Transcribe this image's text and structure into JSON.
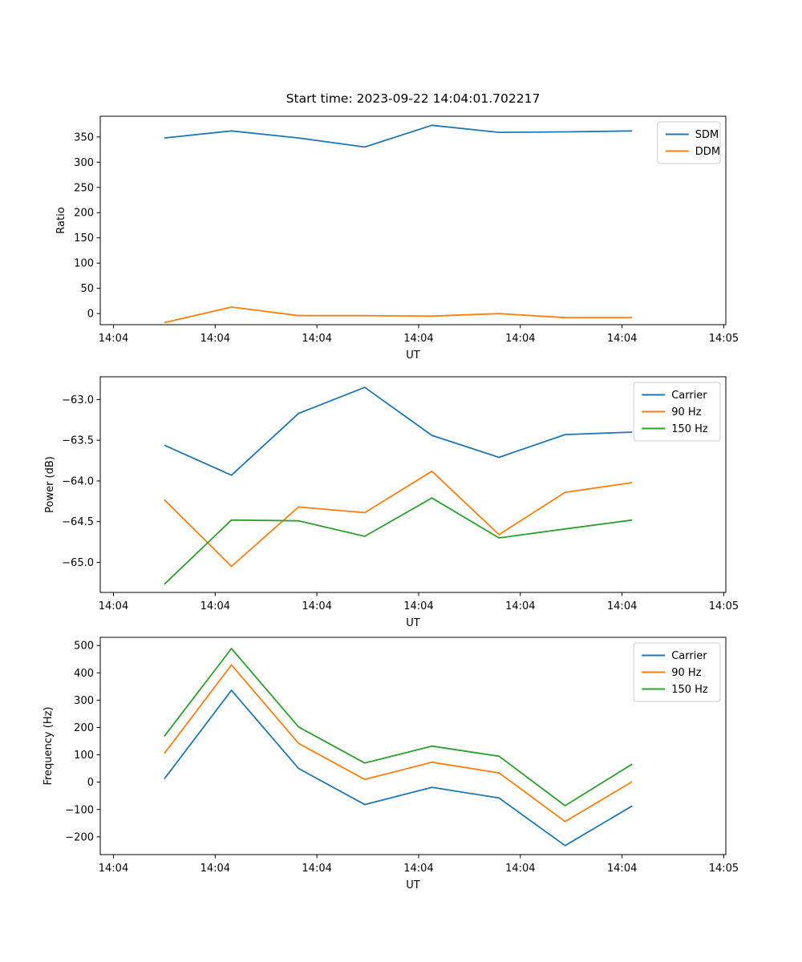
{
  "figure": {
    "background": "#ffffff",
    "title": "Start time: 2023-09-22 14:04:01.702217"
  },
  "palette": {
    "blue": "#1f77b4",
    "orange": "#ff7f0e",
    "green": "#2ca02c",
    "axis": "#000000",
    "legend_border": "#cccccc"
  },
  "chart_data": [
    {
      "type": "line",
      "title": "Start time: 2023-09-22 14:04:01.702217",
      "xlabel": "UT",
      "ylabel": "Ratio",
      "grid": false,
      "legend_position": "upper right",
      "x_tick_labels": [
        "14:04",
        "14:04",
        "14:04",
        "14:04",
        "14:04",
        "14:04",
        "14:05"
      ],
      "x_tick_positions": [
        0,
        10,
        20,
        30,
        40,
        50,
        60
      ],
      "xlim": [
        -1.3,
        60.2
      ],
      "ylim": [
        -22,
        391
      ],
      "y_ticks": [
        350,
        300,
        250,
        200,
        150,
        100,
        50,
        0
      ],
      "y_tick_labels": [
        "350",
        "300",
        "250",
        "200",
        "150",
        "100",
        "50",
        "0"
      ],
      "x_seconds": [
        5.0,
        11.6,
        18.2,
        24.7,
        31.3,
        37.9,
        44.4,
        51.0
      ],
      "series": [
        {
          "name": "SDM",
          "color": "#1f77b4",
          "values": [
            348,
            362,
            348,
            330,
            373,
            359,
            360,
            362
          ]
        },
        {
          "name": "DDM",
          "color": "#ff7f0e",
          "values": [
            -18,
            13,
            -4,
            -4,
            -5,
            0,
            -8,
            -8
          ]
        }
      ]
    },
    {
      "type": "line",
      "title": "",
      "xlabel": "UT",
      "ylabel": "Power (dB)",
      "grid": false,
      "legend_position": "upper right",
      "x_tick_labels": [
        "14:04",
        "14:04",
        "14:04",
        "14:04",
        "14:04",
        "14:04",
        "14:05"
      ],
      "x_tick_positions": [
        0,
        10,
        20,
        30,
        40,
        50,
        60
      ],
      "xlim": [
        -1.3,
        60.2
      ],
      "ylim": [
        -65.37,
        -62.72
      ],
      "y_ticks": [
        -63.0,
        -63.5,
        -64.0,
        -64.5,
        -65.0
      ],
      "y_tick_labels": [
        "−63.0",
        "−63.5",
        "−64.0",
        "−64.5",
        "−65.0"
      ],
      "x_seconds": [
        5.0,
        11.6,
        18.2,
        24.7,
        31.3,
        37.9,
        44.4,
        51.0
      ],
      "series": [
        {
          "name": "Carrier",
          "color": "#1f77b4",
          "values": [
            -63.56,
            -63.93,
            -63.17,
            -62.85,
            -63.44,
            -63.71,
            -63.43,
            -63.4
          ]
        },
        {
          "name": "90 Hz",
          "color": "#ff7f0e",
          "values": [
            -64.23,
            -65.05,
            -64.32,
            -64.39,
            -63.88,
            -64.66,
            -64.14,
            -64.02
          ]
        },
        {
          "name": "150 Hz",
          "color": "#2ca02c",
          "values": [
            -65.27,
            -64.48,
            -64.49,
            -64.68,
            -64.21,
            -64.7,
            -64.59,
            -64.48
          ]
        }
      ]
    },
    {
      "type": "line",
      "title": "",
      "xlabel": "UT",
      "ylabel": "Frequency (Hz)",
      "grid": false,
      "legend_position": "upper right",
      "x_tick_labels": [
        "14:04",
        "14:04",
        "14:04",
        "14:04",
        "14:04",
        "14:04",
        "14:05"
      ],
      "x_tick_positions": [
        0,
        10,
        20,
        30,
        40,
        50,
        60
      ],
      "xlim": [
        -1.3,
        60.2
      ],
      "ylim": [
        -265,
        530
      ],
      "y_ticks": [
        500,
        400,
        300,
        200,
        100,
        0,
        -100,
        -200
      ],
      "y_tick_labels": [
        "500",
        "400",
        "300",
        "200",
        "100",
        "0",
        "−100",
        "−200"
      ],
      "x_seconds": [
        5.0,
        11.6,
        18.2,
        24.7,
        31.3,
        37.9,
        44.4,
        51.0
      ],
      "series": [
        {
          "name": "Carrier",
          "color": "#1f77b4",
          "values": [
            12,
            336,
            50,
            -82,
            -19,
            -58,
            -232,
            -87
          ]
        },
        {
          "name": "90 Hz",
          "color": "#ff7f0e",
          "values": [
            105,
            429,
            142,
            10,
            73,
            34,
            -144,
            2
          ]
        },
        {
          "name": "150 Hz",
          "color": "#2ca02c",
          "values": [
            168,
            489,
            202,
            70,
            132,
            95,
            -86,
            66
          ]
        }
      ]
    }
  ]
}
